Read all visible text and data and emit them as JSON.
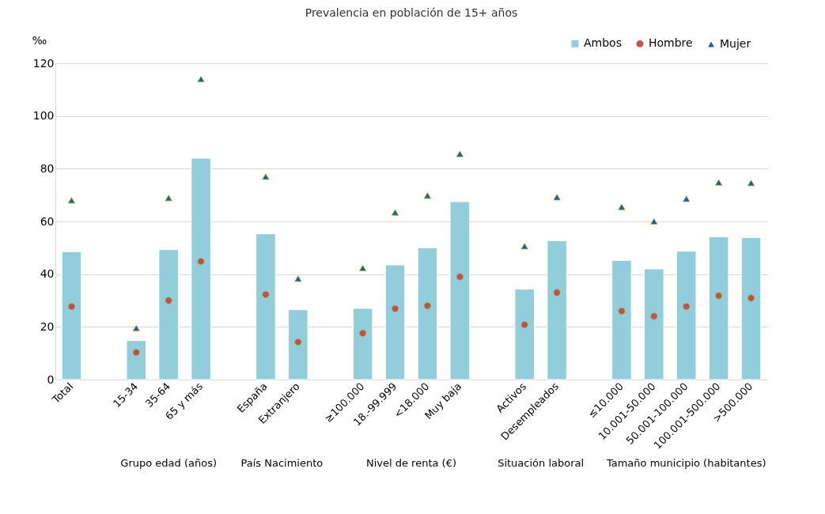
{
  "chart_data": {
    "type": "bar",
    "title": "Prevalencia en población de 15+ años",
    "ylabel": "‰",
    "categories": [
      "Total",
      null,
      "15-34",
      "35-64",
      "65 y más",
      null,
      "España",
      "Extranjero",
      null,
      "≥100.000",
      "18.-99.999",
      "<18.000",
      "Muy baja",
      null,
      "Activos",
      "Desempleados",
      null,
      "≤10.000",
      "10.001-50.000",
      "50.001-100.000",
      "100.001-500.000",
      ">500.000"
    ],
    "series": [
      {
        "name": "Ambos",
        "color": "#92cddc",
        "values": [
          48.5,
          null,
          14.8,
          49.3,
          84,
          null,
          55.3,
          26.5,
          null,
          27,
          43.5,
          50,
          67.5,
          null,
          34.3,
          52.7,
          null,
          45.2,
          42,
          48.7,
          54.2,
          53.9
        ]
      },
      {
        "name": "Hombre",
        "type": "scatter",
        "marker": "circle",
        "color": "#c0504d",
        "values": [
          27.7,
          null,
          10.3,
          30,
          44.8,
          null,
          32.3,
          14.2,
          null,
          17.6,
          26.9,
          28,
          39,
          null,
          20.8,
          33,
          null,
          26,
          24,
          27.7,
          31.8,
          30.9
        ]
      },
      {
        "name": "Mujer",
        "type": "scatter",
        "marker": "triangle",
        "color": "#2e5a8a",
        "values": [
          68,
          null,
          19.5,
          68.9,
          114,
          null,
          77,
          38.3,
          null,
          42.3,
          63.4,
          69.8,
          85.6,
          null,
          50.6,
          69.2,
          null,
          65.5,
          60,
          68.6,
          74.8,
          74.6
        ]
      }
    ],
    "ylim": [
      0,
      120
    ],
    "yticks": [
      0,
      20,
      40,
      60,
      80,
      100,
      120
    ],
    "grid": "y",
    "legend": "top right",
    "annotations": [
      "Grupo edad (años)",
      "País Nacimiento",
      "Nivel de renta (€)",
      "Situación laboral",
      "Tamaño municipio (habitantes)"
    ]
  }
}
